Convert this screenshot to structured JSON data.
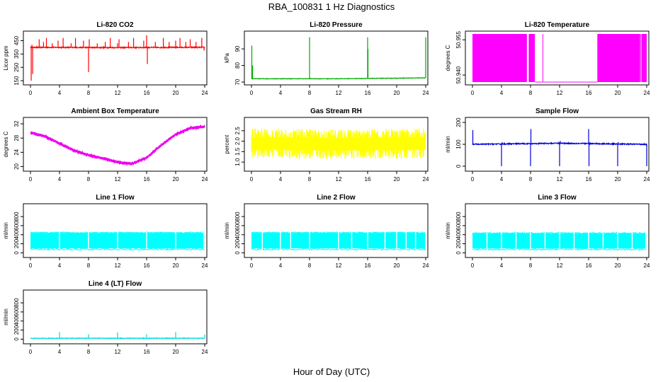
{
  "figure": {
    "title": "RBA_100831  1 Hz Diagnostics",
    "xlabel": "Hour of Day (UTC)"
  },
  "chart_data": [
    {
      "type": "line",
      "title": "Li-820 CO2",
      "ylabel": "Licor ppm",
      "color": "#ff0000",
      "xticks": [
        "0",
        "4",
        "8",
        "12",
        "16",
        "20",
        "24"
      ],
      "xlim": [
        0,
        24
      ],
      "yticks": [
        "150",
        "250",
        "350",
        "450"
      ],
      "yticks_values": [
        150,
        250,
        350,
        450
      ],
      "ylim": [
        140,
        500
      ],
      "baseline": [
        [
          0,
          400
        ],
        [
          6,
          399
        ],
        [
          12,
          398
        ],
        [
          18,
          399
        ],
        [
          24,
          400
        ]
      ],
      "noise": 8,
      "spikes": [
        [
          0.1,
          150
        ],
        [
          0.2,
          420
        ],
        [
          0.3,
          200
        ],
        [
          1.2,
          460
        ],
        [
          1.8,
          440
        ],
        [
          2.2,
          470
        ],
        [
          3.0,
          430
        ],
        [
          3.8,
          450
        ],
        [
          4.5,
          470
        ],
        [
          5.6,
          430
        ],
        [
          6.2,
          470
        ],
        [
          7.3,
          450
        ],
        [
          8.0,
          215
        ],
        [
          8.1,
          460
        ],
        [
          9.2,
          430
        ],
        [
          10.3,
          440
        ],
        [
          11.0,
          470
        ],
        [
          12.0,
          430
        ],
        [
          12.2,
          460
        ],
        [
          13.5,
          440
        ],
        [
          14.2,
          470
        ],
        [
          15.6,
          450
        ],
        [
          16.0,
          490
        ],
        [
          16.1,
          275
        ],
        [
          17.2,
          440
        ],
        [
          18.3,
          470
        ],
        [
          19.1,
          440
        ],
        [
          20.0,
          450
        ],
        [
          20.6,
          470
        ],
        [
          21.4,
          440
        ],
        [
          22.0,
          460
        ],
        [
          22.8,
          440
        ],
        [
          23.6,
          470
        ],
        [
          23.9,
          375
        ]
      ]
    },
    {
      "type": "line",
      "title": "Li-820 Pressure",
      "ylabel": "kPa",
      "color": "#00aa00",
      "xticks": [
        "0",
        "4",
        "8",
        "12",
        "16",
        "20",
        "24"
      ],
      "xlim": [
        0,
        24
      ],
      "yticks": [
        "70",
        "80",
        "90"
      ],
      "yticks_values": [
        70,
        80,
        90
      ],
      "ylim": [
        70,
        99
      ],
      "baseline": [
        [
          0,
          72
        ],
        [
          12,
          72
        ],
        [
          24,
          72.5
        ]
      ],
      "noise": 0.3,
      "spikes": [
        [
          0.05,
          92
        ],
        [
          0.15,
          80
        ],
        [
          8.0,
          97
        ],
        [
          16.0,
          97
        ],
        [
          16.05,
          90
        ],
        [
          24.0,
          97
        ]
      ]
    },
    {
      "type": "area",
      "title": "Li-820 Temperature",
      "ylabel": "degrees C",
      "color": "#ff00ff",
      "xticks": [
        "0",
        "4",
        "8",
        "12",
        "16",
        "20",
        "24"
      ],
      "xlim": [
        0,
        24
      ],
      "yticks": [
        "50.940",
        "50.955"
      ],
      "yticks_values": [
        50.94,
        50.955
      ],
      "ylim": [
        50.937,
        50.9575
      ],
      "filled": [
        [
          0.0,
          7.5,
          50.937,
          50.9575
        ],
        [
          7.75,
          8.6,
          50.937,
          50.9575
        ],
        [
          17.2,
          23.1,
          50.937,
          50.9575
        ],
        [
          23.3,
          24.0,
          50.937,
          50.9575
        ]
      ],
      "gaps": [
        [
          8.6,
          17.2,
          50.937,
          50.937
        ],
        [
          9.7,
          9.7,
          50.937,
          50.9575
        ],
        [
          23.2,
          23.2,
          50.937,
          50.9575
        ]
      ]
    },
    {
      "type": "line",
      "title": "Ambient Box Temperature",
      "ylabel": "degrees C",
      "color": "#ee00ee",
      "xticks": [
        "0",
        "4",
        "8",
        "12",
        "16",
        "20",
        "24"
      ],
      "xlim": [
        0,
        24
      ],
      "yticks": [
        "20",
        "24",
        "28",
        "32"
      ],
      "yticks_values": [
        20,
        24,
        28,
        32
      ],
      "ylim": [
        19.5,
        33
      ],
      "baseline": [
        [
          0,
          29.5
        ],
        [
          2,
          28.5
        ],
        [
          4,
          26.5
        ],
        [
          6,
          24.5
        ],
        [
          8,
          23.2
        ],
        [
          10,
          22.3
        ],
        [
          12,
          21.2
        ],
        [
          14,
          20.8
        ],
        [
          16,
          22.5
        ],
        [
          18,
          26
        ],
        [
          20,
          29
        ],
        [
          22,
          30.8
        ],
        [
          24,
          31.2
        ]
      ],
      "band": 0.6
    },
    {
      "type": "line",
      "title": "Gas Stream RH",
      "ylabel": "percent",
      "color": "#ffff00",
      "xticks": [
        "0",
        "4",
        "8",
        "12",
        "16",
        "20",
        "24"
      ],
      "xlim": [
        0,
        24
      ],
      "yticks": [
        "1.0",
        "1.5",
        "2.0",
        "2.5"
      ],
      "yticks_values": [
        1.0,
        1.5,
        2.0,
        2.5
      ],
      "ylim": [
        0.7,
        3.0
      ],
      "baseline": [
        [
          0,
          1.9
        ],
        [
          12,
          1.85
        ],
        [
          24,
          1.9
        ]
      ],
      "band": 0.6,
      "noise": 0.9
    },
    {
      "type": "line",
      "title": "Sample Flow",
      "ylabel": "ml/min",
      "color": "#0000dd",
      "xticks": [
        "0",
        "4",
        "8",
        "12",
        "16",
        "20",
        "24"
      ],
      "xlim": [
        0,
        24
      ],
      "yticks": [
        "0",
        "100",
        "200"
      ],
      "yticks_values": [
        0,
        100,
        200
      ],
      "ylim": [
        -10,
        210
      ],
      "baseline": [
        [
          0,
          100
        ],
        [
          12,
          105
        ],
        [
          24,
          100
        ]
      ],
      "noise": 5,
      "spikes": [
        [
          0.05,
          165
        ],
        [
          4.0,
          0
        ],
        [
          4.1,
          110
        ],
        [
          8.0,
          0
        ],
        [
          8.05,
          170
        ],
        [
          12.0,
          0
        ],
        [
          12.1,
          115
        ],
        [
          16.0,
          170
        ],
        [
          16.05,
          0
        ],
        [
          20.0,
          0
        ],
        [
          20.1,
          110
        ],
        [
          24.0,
          0
        ]
      ]
    },
    {
      "type": "area",
      "title": "Line 1 Flow",
      "ylabel": "ml/min",
      "color": "#00ffff",
      "xticks": [
        "0",
        "4",
        "8",
        "12",
        "16",
        "20",
        "24"
      ],
      "xlim": [
        0,
        24
      ],
      "yticks": [
        "0",
        "200",
        "400",
        "600",
        "800"
      ],
      "yticks_values": [
        0,
        200,
        400,
        600,
        800
      ],
      "ylim": [
        -40,
        1020
      ],
      "band_low": 100,
      "band_high": 440,
      "gaps_x": [
        4.0,
        8.0,
        12.0,
        16.0,
        20.0,
        23.9
      ]
    },
    {
      "type": "area",
      "title": "Line 2 Flow",
      "ylabel": "ml/min",
      "color": "#00ffff",
      "xticks": [
        "0",
        "4",
        "8",
        "12",
        "16",
        "20",
        "24"
      ],
      "xlim": [
        0,
        24
      ],
      "yticks": [
        "0",
        "200",
        "400",
        "600",
        "800"
      ],
      "yticks_values": [
        0,
        200,
        400,
        600,
        800
      ],
      "ylim": [
        -40,
        1020
      ],
      "band_low": 100,
      "band_high": 440,
      "gaps_x": [
        1.5,
        4.0,
        5.4,
        8.0,
        12.0,
        13.8,
        16.0,
        18.4,
        20.0,
        21.3,
        22.6,
        24.0
      ]
    },
    {
      "type": "area",
      "title": "Line 3 Flow",
      "ylabel": "ml/min",
      "color": "#00ffff",
      "xticks": [
        "0",
        "4",
        "8",
        "12",
        "16",
        "20",
        "24"
      ],
      "xlim": [
        0,
        24
      ],
      "yticks": [
        "0",
        "200",
        "400",
        "600",
        "800"
      ],
      "yticks_values": [
        0,
        200,
        400,
        600,
        800
      ],
      "ylim": [
        -40,
        1020
      ],
      "band_low": 100,
      "band_high": 430,
      "gaps_x": [
        2.0,
        4.0,
        6.0,
        8.0,
        10.0,
        12.0,
        14.0,
        16.0,
        18.0,
        20.0,
        22.0,
        23.9
      ]
    },
    {
      "type": "line",
      "title": "Line 4 (LT) Flow",
      "ylabel": "ml/min",
      "color": "#00dddd",
      "xticks": [
        "0",
        "4",
        "8",
        "12",
        "16",
        "20",
        "24"
      ],
      "xlim": [
        0,
        24
      ],
      "yticks": [
        "0",
        "200",
        "400",
        "600",
        "800"
      ],
      "yticks_values": [
        0,
        200,
        400,
        600,
        800
      ],
      "ylim": [
        -40,
        1020
      ],
      "baseline": [
        [
          0,
          20
        ],
        [
          24,
          20
        ]
      ],
      "noise": 15,
      "spikes": [
        [
          4.0,
          160
        ],
        [
          8.0,
          110
        ],
        [
          12.0,
          150
        ],
        [
          16.0,
          110
        ],
        [
          20.0,
          155
        ],
        [
          24.0,
          100
        ]
      ]
    }
  ]
}
